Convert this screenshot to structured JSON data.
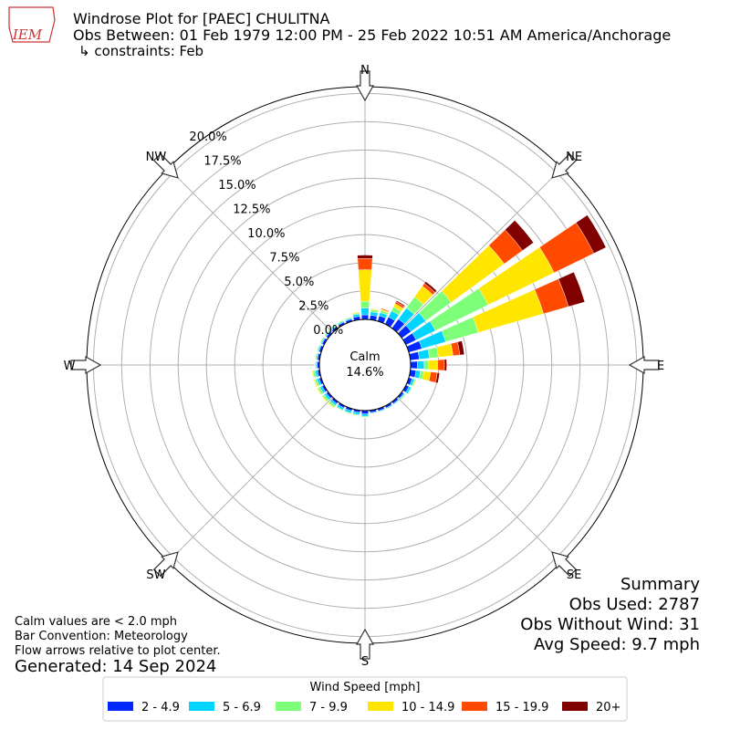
{
  "header": {
    "logo": "IEM"
  },
  "chart_data": {
    "type": "windrose",
    "title": "Windrose Plot for [PAEC] CHULITNA",
    "subtitle": "Obs Between: 01 Feb 1979 12:00 PM - 25 Feb 2022 10:51 AM America/Anchorage",
    "constraints": "↳ constraints: Feb",
    "calm_label": "Calm",
    "calm_value": "14.6%",
    "compass_labels": [
      "N",
      "NE",
      "E",
      "SE",
      "S",
      "SW",
      "W",
      "NW"
    ],
    "x": [
      0,
      10,
      20,
      30,
      40,
      50,
      60,
      70,
      80,
      90,
      100,
      110,
      120,
      130,
      140,
      150,
      160,
      170,
      180,
      190,
      200,
      210,
      220,
      230,
      240,
      250,
      260,
      270,
      280,
      290,
      300,
      310,
      320,
      330,
      340,
      350
    ],
    "ylim": [
      0,
      20.6
    ],
    "yticks": [
      {
        "value": 0,
        "label": "0.0%"
      },
      {
        "value": 2.5,
        "label": "2.5%"
      },
      {
        "value": 5,
        "label": "5.0%"
      },
      {
        "value": 7.5,
        "label": "7.5%"
      },
      {
        "value": 10,
        "label": "10.0%"
      },
      {
        "value": 12.5,
        "label": "12.5%"
      },
      {
        "value": 15,
        "label": "15.0%"
      },
      {
        "value": 17.5,
        "label": "17.5%"
      },
      {
        "value": 20,
        "label": "20.0%"
      }
    ],
    "grid": true,
    "legend_title": "Wind Speed [mph]",
    "series": [
      {
        "name": "2 - 4.9",
        "color": "#0028ff",
        "values": [
          0.4,
          0.4,
          0.5,
          0.7,
          1.0,
          1.0,
          1.0,
          1.2,
          0.8,
          0.6,
          0.5,
          0.3,
          0.3,
          0.2,
          0.2,
          0.2,
          0.2,
          0.2,
          0.3,
          0.2,
          0.2,
          0.2,
          0.2,
          0.2,
          0.2,
          0.2,
          0.2,
          0.2,
          0.2,
          0.2,
          0.2,
          0.2,
          0.2,
          0.2,
          0.2,
          0.3
        ]
      },
      {
        "name": "5 - 6.9",
        "color": "#00d4ff",
        "values": [
          0.6,
          0.3,
          0.3,
          0.6,
          1.2,
          1.6,
          1.9,
          2.2,
          0.9,
          0.6,
          0.4,
          0.2,
          0.2,
          0.1,
          0.1,
          0.1,
          0.1,
          0.1,
          0.2,
          0.2,
          0.2,
          0.2,
          0.2,
          0.2,
          0.2,
          0.2,
          0.2,
          0.1,
          0.1,
          0.1,
          0.1,
          0.1,
          0.1,
          0.1,
          0.1,
          0.2
        ]
      },
      {
        "name": "7 - 9.9",
        "color": "#7dff7a",
        "values": [
          0.6,
          0.2,
          0.2,
          0.4,
          1.2,
          2.8,
          5.2,
          3.0,
          0.8,
          0.4,
          0.3,
          0.1,
          0.1,
          0.1,
          0,
          0,
          0,
          0,
          0.1,
          0.1,
          0.1,
          0.1,
          0.2,
          0.2,
          0.2,
          0.2,
          0.2,
          0.1,
          0.1,
          0.1,
          0.1,
          0.1,
          0.1,
          0.1,
          0.1,
          0.1
        ]
      },
      {
        "name": "10 - 14.9",
        "color": "#ffe600",
        "values": [
          2.8,
          0.1,
          0.1,
          0.3,
          1.2,
          5.8,
          6.5,
          6.0,
          1.3,
          0.8,
          0.6,
          0.1,
          0,
          0,
          0,
          0,
          0,
          0,
          0,
          0,
          0,
          0,
          0.1,
          0.1,
          0.1,
          0.1,
          0.1,
          0,
          0,
          0,
          0,
          0,
          0,
          0,
          0,
          0.1
        ]
      },
      {
        "name": "15 - 19.9",
        "color": "#ff4a00",
        "values": [
          1.0,
          0,
          0.1,
          0.2,
          0.3,
          2.0,
          3.9,
          2.3,
          0.6,
          0.6,
          0.6,
          0,
          0,
          0,
          0,
          0,
          0,
          0,
          0,
          0,
          0,
          0,
          0,
          0,
          0,
          0,
          0,
          0,
          0,
          0,
          0,
          0,
          0,
          0,
          0,
          0
        ]
      },
      {
        "name": "20+",
        "color": "#800000",
        "values": [
          0.3,
          0,
          0,
          0.1,
          0.2,
          1.2,
          1.2,
          1.5,
          0.4,
          0.2,
          0.2,
          0,
          0,
          0,
          0,
          0,
          0,
          0,
          0,
          0,
          0,
          0,
          0,
          0,
          0,
          0,
          0,
          0,
          0,
          0,
          0,
          0,
          0,
          0,
          0,
          0
        ]
      }
    ],
    "summary": [
      "Summary",
      "Obs Used: 2787",
      "Obs Without Wind: 31",
      "Avg Speed: 9.7 mph"
    ],
    "notes": [
      "Calm values are < 2.0 mph",
      "Bar Convention: Meteorology",
      "Flow arrows relative to plot center."
    ],
    "generated": "Generated: 14 Sep 2024"
  }
}
